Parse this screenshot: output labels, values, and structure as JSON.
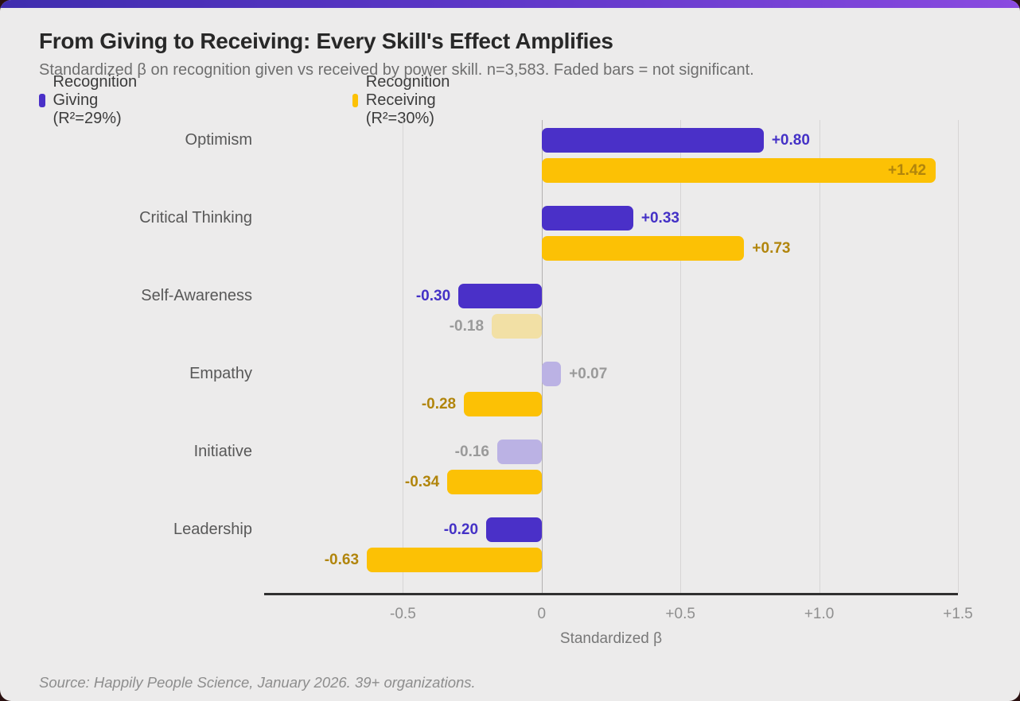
{
  "page": {
    "accent_gradient": [
      "#3f2dae",
      "#8a4ae0"
    ],
    "card_bg": "#ECEBEB"
  },
  "header": {
    "title": "From Giving to Receiving: Every Skill's Effect Amplifies",
    "subtitle": "Standardized β on recognition given vs received by power skill. n=3,583. Faded bars = not significant."
  },
  "legend": [
    {
      "label": "Recognition Giving (R²=29%)",
      "color": "#4A30C8"
    },
    {
      "label": "Recognition Receiving (R²=30%)",
      "color": "#FCC105"
    }
  ],
  "chart_data": {
    "type": "bar",
    "orientation": "horizontal",
    "title": "From Giving to Receiving: Every Skill's Effect Amplifies",
    "subtitle": "Standardized β on recognition given vs received by power skill. n=3,583. Faded bars = not significant.",
    "categories": [
      "Optimism",
      "Critical Thinking",
      "Self-Awareness",
      "Empathy",
      "Initiative",
      "Leadership"
    ],
    "series": [
      {
        "name": "Recognition Giving (R²=29%)",
        "color": "#4A30C8",
        "faded_color": "#BBB2E4",
        "label_color": "#4431C6",
        "values": [
          0.8,
          0.33,
          -0.3,
          0.07,
          -0.16,
          -0.2
        ],
        "labels": [
          "+0.80",
          "+0.33",
          "-0.30",
          "+0.07",
          "-0.16",
          "-0.20"
        ],
        "significant": [
          true,
          true,
          true,
          false,
          false,
          true
        ]
      },
      {
        "name": "Recognition Receiving (R²=30%)",
        "color": "#FCC105",
        "faded_color": "#F2E0A5",
        "label_color": "#B1850C",
        "values": [
          1.42,
          0.73,
          -0.18,
          -0.28,
          -0.34,
          -0.63
        ],
        "labels": [
          "+1.42",
          "+0.73",
          "-0.18",
          "-0.28",
          "-0.34",
          "-0.63"
        ],
        "significant": [
          true,
          true,
          false,
          true,
          true,
          true
        ]
      }
    ],
    "not_significant_label_color": "#9A9A9A",
    "xlabel": "Standardized β",
    "xlim": [
      -1.0,
      1.5
    ],
    "xticks": [
      -0.5,
      0,
      0.5,
      1.0,
      1.5
    ],
    "xtick_labels": [
      "-0.5",
      "0",
      "+0.5",
      "+1.0",
      "+1.5"
    ],
    "grid": true,
    "legend_position": "top"
  },
  "footer": {
    "source": "Source: Happily People Science, January 2026. 39+ organizations."
  }
}
